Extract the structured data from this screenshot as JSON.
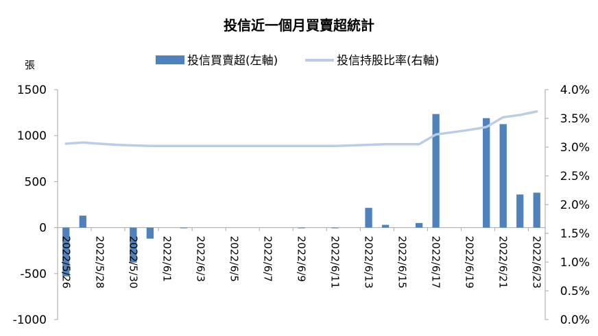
{
  "chart_data": {
    "type": "bar+line",
    "title": "投信近一個月買賣超統計",
    "left_axis_unit": "張",
    "legend": {
      "bar_label": "投信買賣超(左軸)",
      "line_label": "投信持股比率(右軸)"
    },
    "colors": {
      "bar": "#4f81bd",
      "line": "#b9cde5",
      "axis": "#a6a6a6"
    },
    "dates": [
      "2022/5/26",
      "2022/5/27",
      "2022/5/28",
      "2022/5/29",
      "2022/5/30",
      "2022/5/31",
      "2022/6/1",
      "2022/6/2",
      "2022/6/3",
      "2022/6/4",
      "2022/6/5",
      "2022/6/6",
      "2022/6/7",
      "2022/6/8",
      "2022/6/9",
      "2022/6/10",
      "2022/6/11",
      "2022/6/12",
      "2022/6/13",
      "2022/6/14",
      "2022/6/15",
      "2022/6/16",
      "2022/6/17",
      "2022/6/18",
      "2022/6/19",
      "2022/6/20",
      "2022/6/21",
      "2022/6/22",
      "2022/6/23"
    ],
    "x_tick_labels": [
      "2022/5/26",
      "2022/5/28",
      "2022/5/30",
      "2022/6/1",
      "2022/6/3",
      "2022/6/5",
      "2022/6/7",
      "2022/6/9",
      "2022/6/11",
      "2022/6/13",
      "2022/6/15",
      "2022/6/17",
      "2022/6/19",
      "2022/6/21",
      "2022/6/23"
    ],
    "series": [
      {
        "name": "投信買賣超(左軸)",
        "axis": "left",
        "type": "bar",
        "values": [
          -530,
          130,
          0,
          0,
          -380,
          -120,
          0,
          -5,
          0,
          0,
          0,
          0,
          0,
          0,
          -5,
          0,
          -5,
          0,
          215,
          30,
          0,
          50,
          1235,
          0,
          0,
          1190,
          1125,
          360,
          380
        ]
      },
      {
        "name": "投信持股比率(右軸)",
        "axis": "right",
        "type": "line",
        "values": [
          3.06,
          3.08,
          3.06,
          3.04,
          3.03,
          3.02,
          3.02,
          3.02,
          3.02,
          3.02,
          3.02,
          3.02,
          3.02,
          3.02,
          3.02,
          3.02,
          3.02,
          3.03,
          3.04,
          3.05,
          3.05,
          3.05,
          3.22,
          3.26,
          3.3,
          3.35,
          3.52,
          3.56,
          3.62
        ]
      }
    ],
    "left_axis": {
      "min": -1000,
      "max": 1500,
      "step": 500,
      "tick_labels": [
        "-1000",
        "-500",
        "0",
        "500",
        "1000",
        "1500"
      ]
    },
    "right_axis": {
      "min": 0,
      "max": 4.0,
      "step": 0.5,
      "tick_labels": [
        "0.0%",
        "0.5%",
        "1.0%",
        "1.5%",
        "2.0%",
        "2.5%",
        "3.0%",
        "3.5%",
        "4.0%"
      ]
    },
    "grid": false,
    "legend_position": "top-center"
  }
}
